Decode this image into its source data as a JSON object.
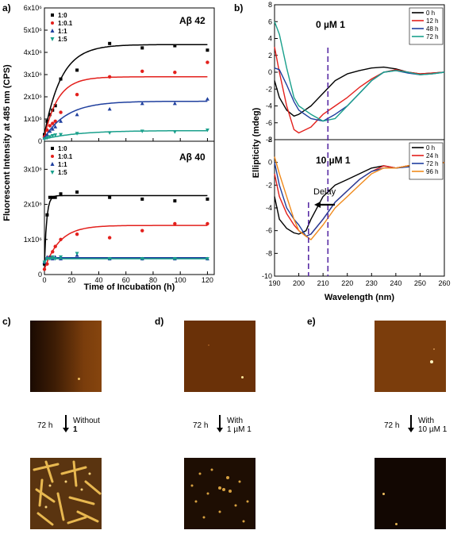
{
  "panels": {
    "a_label": "a)",
    "b_label": "b)",
    "c_label": "c)",
    "d_label": "d)",
    "e_label": "e)"
  },
  "panel_a": {
    "ylabel": "Fluorescent Intensity at 485 nm (CPS)",
    "xlabel": "Time of Incubation (h)",
    "legend": [
      "1:0",
      "1:0.1",
      "1:1",
      "1:5"
    ],
    "colors": [
      "#000000",
      "#e3201c",
      "#1f3f9e",
      "#1aa08c"
    ],
    "xticks": [
      "0",
      "20",
      "40",
      "60",
      "80",
      "100",
      "120"
    ],
    "top": {
      "title": "Aβ 42",
      "yticks": [
        "0",
        "1x10⁶",
        "2x10⁶",
        "3x10⁶",
        "4x10⁶",
        "5x10⁶",
        "6x10⁶"
      ]
    },
    "bottom": {
      "title": "Aβ 40",
      "yticks": [
        "0",
        "1x10⁶",
        "2x10⁶",
        "3x10⁶"
      ]
    }
  },
  "panel_b": {
    "ylabel": "Ellipticity (mdeg)",
    "xlabel": "Wavelength (nm)",
    "xticks": [
      "190",
      "200",
      "210",
      "220",
      "230",
      "240",
      "250",
      "260"
    ],
    "top": {
      "title": "0 µM 1",
      "legend": [
        "0 h",
        "12 h",
        "48 h",
        "72 h"
      ],
      "colors": [
        "#000000",
        "#e3201c",
        "#1f3f9e",
        "#1aa08c"
      ],
      "yticks": [
        "-8",
        "-6",
        "-4",
        "-2",
        "0",
        "2",
        "4",
        "6",
        "8"
      ]
    },
    "bottom": {
      "title": "10 µM 1",
      "legend": [
        "0 h",
        "24 h",
        "72 h",
        "96 h"
      ],
      "colors": [
        "#000000",
        "#e3201c",
        "#1f3f9e",
        "#f08a1c"
      ],
      "yticks": [
        "-10",
        "-8",
        "-6",
        "-4",
        "-2",
        "0",
        "2"
      ],
      "annotation": "Delay"
    }
  },
  "afm": {
    "c": {
      "time": "72 h",
      "condition_line1": "Without",
      "condition_line2": "1"
    },
    "d": {
      "time": "72 h",
      "condition_line1": "With",
      "condition_line2": "1 µM 1"
    },
    "e": {
      "time": "72 h",
      "condition_line1": "With",
      "condition_line2": "10 µM 1"
    }
  },
  "chart_data": [
    {
      "type": "scatter",
      "title": "Aβ 42",
      "xlabel": "Time of Incubation (h)",
      "ylabel": "Fluorescent Intensity at 485 nm (CPS)",
      "xlim": [
        0,
        125
      ],
      "ylim": [
        0,
        6000000
      ],
      "series": [
        {
          "name": "1:0",
          "x": [
            0,
            2,
            4,
            6,
            8,
            12,
            24,
            48,
            72,
            96,
            120
          ],
          "y": [
            300000,
            900000,
            1200000,
            1400000,
            1600000,
            2800000,
            3200000,
            4400000,
            4200000,
            4300000,
            4100000
          ],
          "fit_plateau": 4350000,
          "fit_rate": 0.08
        },
        {
          "name": "1:0.1",
          "x": [
            0,
            2,
            4,
            6,
            8,
            12,
            24,
            48,
            72,
            96,
            120
          ],
          "y": [
            200000,
            500000,
            700000,
            800000,
            900000,
            1300000,
            2100000,
            2900000,
            3150000,
            3100000,
            3550000
          ],
          "fit_plateau": 2900000,
          "fit_rate": 0.1
        },
        {
          "name": "1:1",
          "x": [
            0,
            2,
            4,
            6,
            8,
            12,
            24,
            48,
            72,
            96,
            120
          ],
          "y": [
            150000,
            300000,
            450000,
            550000,
            650000,
            900000,
            1200000,
            1450000,
            1700000,
            1700000,
            1900000
          ],
          "fit_plateau": 1800000,
          "fit_rate": 0.06
        },
        {
          "name": "1:5",
          "x": [
            0,
            2,
            4,
            6,
            8,
            12,
            24,
            48,
            72,
            96,
            120
          ],
          "y": [
            100000,
            150000,
            200000,
            250000,
            280000,
            300000,
            350000,
            380000,
            450000,
            420000,
            500000
          ],
          "fit_plateau": 480000,
          "fit_rate": 0.04
        }
      ]
    },
    {
      "type": "scatter",
      "title": "Aβ 40",
      "xlabel": "Time of Incubation (h)",
      "ylabel": "Fluorescent Intensity at 485 nm (CPS)",
      "xlim": [
        0,
        125
      ],
      "ylim": [
        0,
        3800000
      ],
      "series": [
        {
          "name": "1:0",
          "x": [
            0,
            2,
            4,
            6,
            8,
            12,
            24,
            48,
            72,
            96,
            120
          ],
          "y": [
            300000,
            1700000,
            2200000,
            2200000,
            2200000,
            2300000,
            2350000,
            2200000,
            2150000,
            2100000,
            2150000
          ],
          "fit_plateau": 2250000,
          "fit_rate": 0.6
        },
        {
          "name": "1:0.1",
          "x": [
            0,
            2,
            4,
            6,
            8,
            12,
            24,
            48,
            72,
            96,
            120
          ],
          "y": [
            150000,
            300000,
            500000,
            650000,
            800000,
            1000000,
            1150000,
            1050000,
            1250000,
            1450000,
            1450000
          ],
          "fit_plateau": 1400000,
          "fit_rate": 0.09
        },
        {
          "name": "1:1",
          "x": [
            0,
            2,
            4,
            6,
            8,
            12,
            24,
            48,
            72,
            96,
            120
          ],
          "y": [
            350000,
            500000,
            500000,
            450000,
            500000,
            450000,
            550000,
            450000,
            450000,
            450000,
            450000
          ],
          "fit_plateau": 480000,
          "fit_rate": 1.0
        },
        {
          "name": "1:5",
          "x": [
            0,
            2,
            4,
            6,
            8,
            12,
            24,
            48,
            72,
            96,
            120
          ],
          "y": [
            350000,
            450000,
            450000,
            500000,
            450000,
            500000,
            600000,
            450000,
            450000,
            450000,
            450000
          ],
          "fit_plateau": 450000,
          "fit_rate": 1.0
        }
      ]
    },
    {
      "type": "line",
      "title": "0 µM 1",
      "xlabel": "Wavelength (nm)",
      "ylabel": "Ellipticity (mdeg)",
      "xlim": [
        190,
        260
      ],
      "ylim": [
        -8,
        8
      ],
      "x": [
        190,
        192,
        195,
        198,
        200,
        205,
        210,
        215,
        220,
        225,
        230,
        235,
        240,
        245,
        250,
        255,
        260
      ],
      "series": [
        {
          "name": "0 h",
          "values": [
            -1,
            -3,
            -4.5,
            -5.2,
            -5,
            -4,
            -2.5,
            -1,
            -0.2,
            0.2,
            0.5,
            0.6,
            0.4,
            0,
            -0.2,
            -0.1,
            0
          ]
        },
        {
          "name": "12 h",
          "values": [
            3,
            0,
            -4,
            -6.8,
            -7.2,
            -6.5,
            -5,
            -4,
            -3,
            -1.8,
            -0.8,
            0,
            0.3,
            0,
            -0.2,
            -0.1,
            0
          ]
        },
        {
          "name": "48 h",
          "values": [
            0.5,
            0.3,
            -1.5,
            -3.5,
            -4.5,
            -5.5,
            -5.8,
            -5,
            -4,
            -2.5,
            -1,
            0,
            0.2,
            -0.1,
            -0.3,
            -0.2,
            0
          ]
        },
        {
          "name": "72 h",
          "values": [
            6,
            4.5,
            0.5,
            -3,
            -4,
            -5,
            -5.8,
            -5.5,
            -4,
            -2.5,
            -1,
            0,
            0.2,
            0,
            -0.3,
            -0.2,
            0
          ]
        }
      ]
    },
    {
      "type": "line",
      "title": "10 µM 1",
      "xlabel": "Wavelength (nm)",
      "ylabel": "Ellipticity (mdeg)",
      "xlim": [
        190,
        260
      ],
      "ylim": [
        -10,
        2
      ],
      "x": [
        190,
        192,
        195,
        198,
        200,
        203,
        205,
        210,
        215,
        220,
        225,
        230,
        235,
        240,
        245,
        250,
        255,
        260
      ],
      "series": [
        {
          "name": "0 h",
          "values": [
            -3,
            -5,
            -5.8,
            -6.2,
            -6.3,
            -6,
            -5,
            -3,
            -2,
            -1.5,
            -1,
            -0.5,
            -0.3,
            -0.5,
            -0.3,
            -0.2,
            -0.2,
            0
          ]
        },
        {
          "name": "24 h",
          "values": [
            -1,
            -3,
            -4.5,
            -5.5,
            -6,
            -6.5,
            -6.3,
            -5,
            -3.5,
            -2.5,
            -1.5,
            -0.8,
            -0.3,
            -0.5,
            -0.3,
            -0.2,
            -0.2,
            0
          ]
        },
        {
          "name": "72 h",
          "values": [
            0,
            -2,
            -4,
            -5,
            -5.5,
            -6.5,
            -6.3,
            -5,
            -3.5,
            -2.5,
            -1.5,
            -0.8,
            -0.5,
            -0.5,
            -0.4,
            -0.2,
            -0.2,
            0
          ]
        },
        {
          "name": "96 h",
          "values": [
            0.5,
            -1,
            -3,
            -5,
            -6,
            -6.5,
            -6.8,
            -5.5,
            -4,
            -3,
            -2,
            -1,
            -0.5,
            -0.5,
            -0.3,
            -0.2,
            -0.3,
            0
          ]
        }
      ],
      "annotation": "Delay",
      "vlines": [
        204,
        212
      ]
    }
  ]
}
